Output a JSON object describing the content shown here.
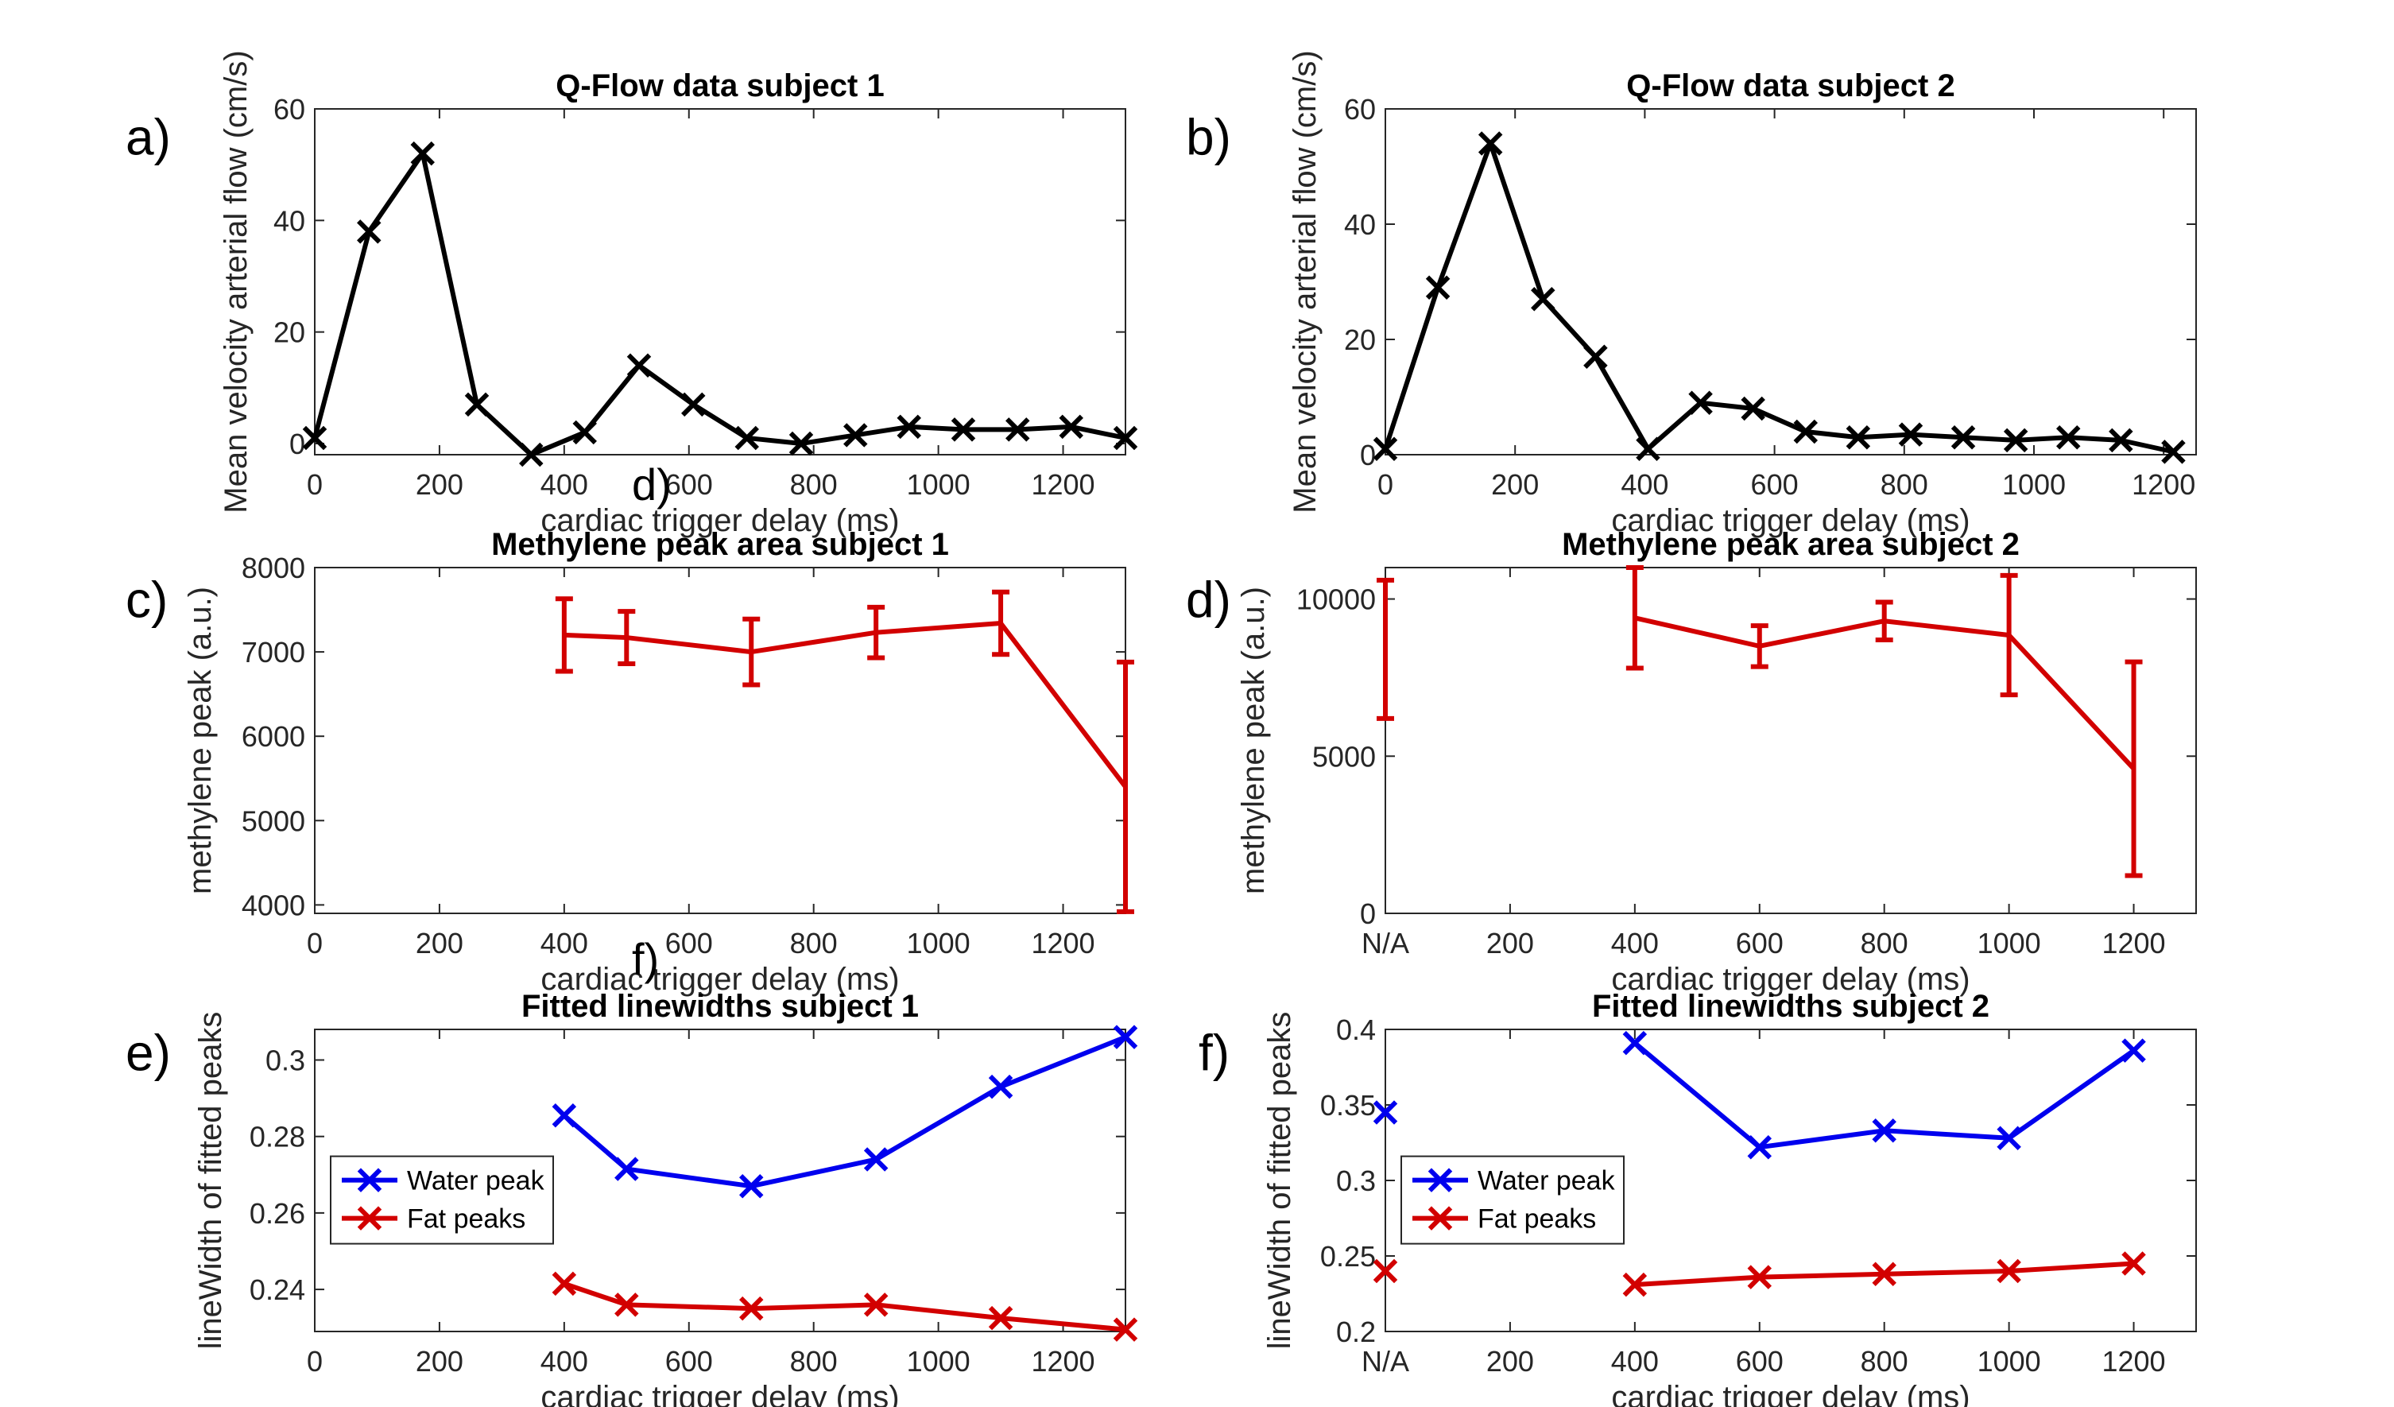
{
  "figure": {
    "background": "#ffffff"
  },
  "colors": {
    "black": "#000000",
    "red": "#d20000",
    "blue": "#0000ee",
    "axis": "#262626"
  },
  "chart_data": [
    {
      "id": "a",
      "panel_label": "a)",
      "type": "line",
      "title": "Q-Flow data subject 1",
      "xlabel": "cardiac trigger delay (ms)",
      "ylabel": "Mean velocity arterial flow (cm/s)",
      "xlim": [
        0,
        1300
      ],
      "ylim": [
        -2,
        60
      ],
      "xticks": [
        0,
        200,
        400,
        600,
        800,
        1000,
        1200
      ],
      "xticklabels": [
        "0",
        "200",
        "400",
        "600",
        "800",
        "1000",
        "1200"
      ],
      "yticks": [
        0,
        20,
        40,
        60
      ],
      "yticklabels": [
        "0",
        "20",
        "40",
        "60"
      ],
      "grid": false,
      "series": [
        {
          "name": "Q-Flow",
          "color": "#000000",
          "marker": "x",
          "x": [
            0,
            87,
            173,
            260,
            347,
            433,
            520,
            607,
            693,
            780,
            867,
            953,
            1040,
            1127,
            1213,
            1300
          ],
          "y": [
            1,
            38,
            52,
            7,
            -2,
            2,
            14,
            7,
            1,
            0,
            1.5,
            3,
            2.5,
            2.5,
            3,
            1
          ]
        }
      ]
    },
    {
      "id": "b",
      "panel_label": "b)",
      "type": "line",
      "title": "Q-Flow data subject 2",
      "xlabel": "cardiac trigger delay (ms)",
      "ylabel": "Mean velocity arterial flow (cm/s)",
      "xlim": [
        0,
        1250
      ],
      "ylim": [
        0,
        60
      ],
      "xticks": [
        0,
        200,
        400,
        600,
        800,
        1000,
        1200
      ],
      "xticklabels": [
        "0",
        "200",
        "400",
        "600",
        "800",
        "1000",
        "1200"
      ],
      "yticks": [
        0,
        20,
        40,
        60
      ],
      "yticklabels": [
        "0",
        "20",
        "40",
        "60"
      ],
      "grid": false,
      "series": [
        {
          "name": "Q-Flow",
          "color": "#000000",
          "marker": "x",
          "x": [
            0,
            81,
            162,
            243,
            324,
            405,
            486,
            567,
            648,
            729,
            810,
            891,
            972,
            1053,
            1134,
            1215
          ],
          "y": [
            1,
            29,
            54,
            27,
            17,
            1,
            9,
            8,
            4,
            3,
            3.5,
            3,
            2.5,
            3,
            2.5,
            0.5
          ]
        }
      ]
    },
    {
      "id": "c",
      "panel_label": "c)",
      "type": "errorbar",
      "title": "Methylene peak area subject 1",
      "xlabel": "cardiac trigger delay (ms)",
      "ylabel": "methylene peak (a.u.)",
      "xlim": [
        0,
        1300
      ],
      "ylim": [
        3900,
        8000
      ],
      "xticks": [
        0,
        200,
        400,
        600,
        800,
        1000,
        1200
      ],
      "xticklabels": [
        "0",
        "200",
        "400",
        "600",
        "800",
        "1000",
        "1200"
      ],
      "yticks": [
        4000,
        5000,
        6000,
        7000,
        8000
      ],
      "yticklabels": [
        "4000",
        "5000",
        "6000",
        "7000",
        "8000"
      ],
      "grid": false,
      "stray_label": "d)",
      "series": [
        {
          "name": "Methylene",
          "color": "#d20000",
          "marker": "none",
          "x": [
            400,
            500,
            700,
            900,
            1100,
            1300
          ],
          "y": [
            7200,
            7170,
            7000,
            7230,
            7340,
            5400
          ],
          "err": [
            430,
            310,
            390,
            300,
            370,
            1480
          ]
        }
      ]
    },
    {
      "id": "d",
      "panel_label": "d)",
      "type": "errorbar",
      "title": "Methylene peak area subject 2",
      "xlabel": "cardiac trigger delay (ms)",
      "ylabel": "methylene peak (a.u.)",
      "xlim": [
        0,
        1300
      ],
      "ylim": [
        0,
        11000
      ],
      "xticks": [
        0,
        200,
        400,
        600,
        800,
        1000,
        1200
      ],
      "xticklabels": [
        "N/A",
        "200",
        "400",
        "600",
        "800",
        "1000",
        "1200"
      ],
      "yticks": [
        0,
        5000,
        10000
      ],
      "yticklabels": [
        "0",
        "5000",
        "10000"
      ],
      "grid": false,
      "series": [
        {
          "name": "Methylene",
          "color": "#d20000",
          "marker": "none",
          "x": [
            0,
            400,
            600,
            800,
            1000,
            1200
          ],
          "y": [
            8400,
            9400,
            8500,
            9300,
            8850,
            4600
          ],
          "err": [
            2200,
            1600,
            650,
            600,
            1900,
            3400
          ],
          "connect_from_index": 1
        }
      ]
    },
    {
      "id": "e",
      "panel_label": "e)",
      "type": "line",
      "title": "Fitted linewidths subject 1",
      "xlabel": "cardiac trigger delay (ms)",
      "ylabel": "lineWidth of fitted peaks",
      "xlim": [
        0,
        1300
      ],
      "ylim": [
        0.229,
        0.308
      ],
      "xticks": [
        0,
        200,
        400,
        600,
        800,
        1000,
        1200
      ],
      "xticklabels": [
        "0",
        "200",
        "400",
        "600",
        "800",
        "1000",
        "1200"
      ],
      "yticks": [
        0.24,
        0.26,
        0.28,
        0.3
      ],
      "yticklabels": [
        "0.24",
        "0.26",
        "0.28",
        "0.3"
      ],
      "grid": false,
      "stray_label": "f)",
      "legend": {
        "placement": "middle-left",
        "entries": [
          "Water peak",
          "Fat peaks"
        ]
      },
      "series": [
        {
          "name": "Water peak",
          "color": "#0000ee",
          "marker": "x",
          "x": [
            400,
            500,
            700,
            900,
            1100,
            1300
          ],
          "y": [
            0.2855,
            0.2715,
            0.267,
            0.274,
            0.293,
            0.306
          ]
        },
        {
          "name": "Fat peaks",
          "color": "#d20000",
          "marker": "x",
          "x": [
            400,
            500,
            700,
            900,
            1100,
            1300
          ],
          "y": [
            0.2415,
            0.236,
            0.235,
            0.236,
            0.2325,
            0.2295
          ]
        }
      ]
    },
    {
      "id": "f",
      "panel_label": "f)",
      "type": "line",
      "title": "Fitted linewidths subject 2",
      "xlabel": "cardiac trigger delay (ms)",
      "ylabel": "lineWidth of fitted peaks",
      "xlim": [
        0,
        1300
      ],
      "ylim": [
        0.2,
        0.4
      ],
      "xticks": [
        0,
        200,
        400,
        600,
        800,
        1000,
        1200
      ],
      "xticklabels": [
        "N/A",
        "200",
        "400",
        "600",
        "800",
        "1000",
        "1200"
      ],
      "yticks": [
        0.2,
        0.25,
        0.3,
        0.35,
        0.4
      ],
      "yticklabels": [
        "0.2",
        "0.25",
        "0.3",
        "0.35",
        "0.4"
      ],
      "grid": false,
      "legend": {
        "placement": "middle-left",
        "entries": [
          "Water peak",
          "Fat peaks"
        ]
      },
      "series": [
        {
          "name": "Water peak",
          "color": "#0000ee",
          "marker": "x",
          "x": [
            0,
            400,
            600,
            800,
            1000,
            1200
          ],
          "y": [
            0.345,
            0.391,
            0.322,
            0.333,
            0.328,
            0.386
          ],
          "connect_from_index": 1
        },
        {
          "name": "Fat peaks",
          "color": "#d20000",
          "marker": "x",
          "x": [
            0,
            400,
            600,
            800,
            1000,
            1200
          ],
          "y": [
            0.24,
            0.231,
            0.236,
            0.238,
            0.24,
            0.245
          ],
          "connect_from_index": 1
        }
      ]
    }
  ]
}
